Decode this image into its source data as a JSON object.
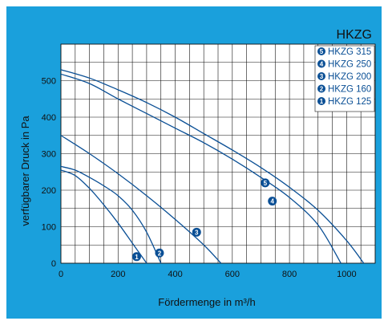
{
  "chart_data": {
    "type": "line",
    "title": "HKZG",
    "xlabel": "Fördermenge in m³/h",
    "ylabel": "verfügbarer Druck in Pa",
    "xlim": [
      0,
      1100
    ],
    "ylim": [
      0,
      600
    ],
    "xticks": [
      "0",
      "200",
      "400",
      "600",
      "800",
      "1000"
    ],
    "yticks": [
      "0",
      "100",
      "200",
      "300",
      "400",
      "500"
    ],
    "grid": true,
    "legend_position": "top-right",
    "series": [
      {
        "name": "HKZG 315",
        "marker": "5",
        "color": "#0a4f95",
        "x": [
          0,
          100,
          200,
          300,
          400,
          500,
          600,
          700,
          800,
          900,
          1000,
          1060
        ],
        "y": [
          530,
          507,
          475,
          440,
          400,
          355,
          310,
          262,
          208,
          145,
          62,
          0
        ],
        "label_at": [
          715,
          220
        ]
      },
      {
        "name": "HKZG 250",
        "marker": "4",
        "color": "#0a4f95",
        "x": [
          0,
          100,
          200,
          300,
          400,
          500,
          600,
          700,
          800,
          900,
          980
        ],
        "y": [
          518,
          492,
          450,
          410,
          370,
          330,
          285,
          235,
          180,
          105,
          0
        ],
        "label_at": [
          740,
          170
        ]
      },
      {
        "name": "HKZG 200",
        "marker": "3",
        "color": "#0a4f95",
        "x": [
          0,
          100,
          200,
          300,
          400,
          500,
          560
        ],
        "y": [
          350,
          300,
          245,
          185,
          120,
          50,
          0
        ],
        "label_at": [
          475,
          85
        ]
      },
      {
        "name": "HKZG 160",
        "marker": "2",
        "color": "#0a4f95",
        "x": [
          0,
          50,
          100,
          150,
          200,
          250,
          300,
          350
        ],
        "y": [
          265,
          255,
          235,
          212,
          185,
          145,
          85,
          0
        ],
        "label_at": [
          345,
          28
        ]
      },
      {
        "name": "HKZG 125",
        "marker": "1",
        "color": "#0a4f95",
        "x": [
          0,
          50,
          100,
          150,
          200,
          250,
          300
        ],
        "y": [
          255,
          240,
          205,
          160,
          110,
          55,
          0
        ],
        "label_at": [
          265,
          18
        ]
      }
    ]
  },
  "colors": {
    "panel_bg": "#1aa0dc",
    "plot_bg": "#ffffff",
    "grid": "#111111",
    "line": "#0a4f95"
  }
}
